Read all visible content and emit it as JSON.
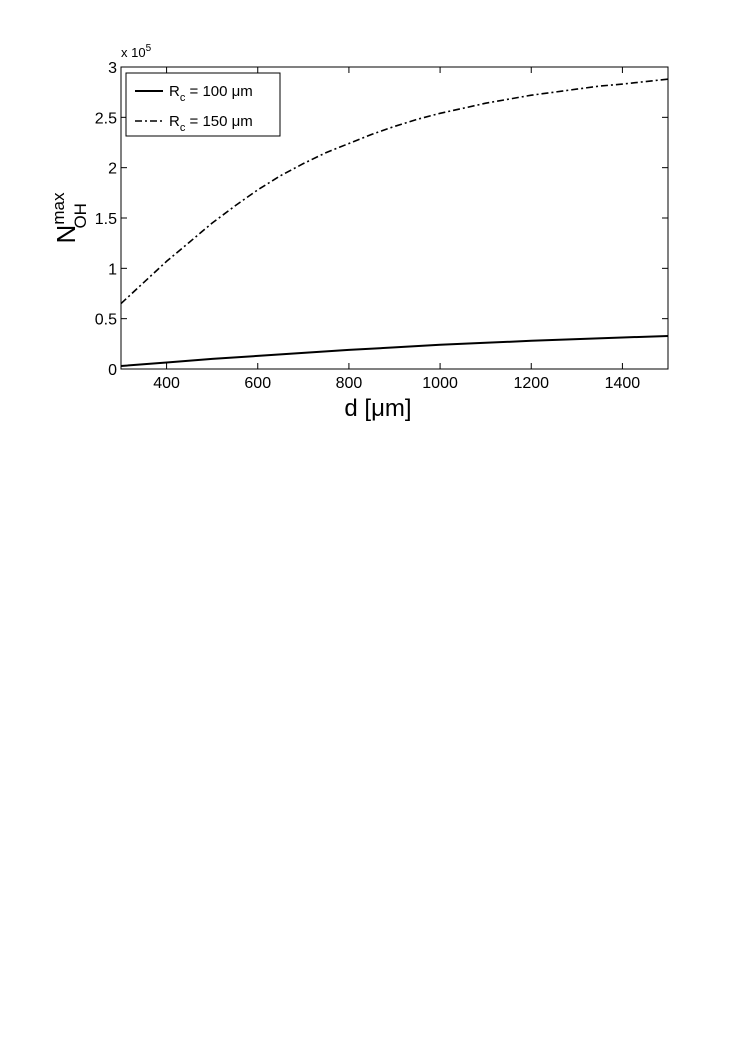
{
  "chart_data": {
    "type": "line",
    "xlabel": "d [μm]",
    "ylabel": {
      "base": "N",
      "superscript": "max",
      "subscript": "OH"
    },
    "y_multiplier": "x 10",
    "y_multiplier_exponent": "5",
    "xlim": [
      300,
      1500
    ],
    "ylim": [
      0,
      3
    ],
    "x_ticks": [
      400,
      600,
      800,
      1000,
      1200,
      1400
    ],
    "y_ticks": [
      0,
      0.5,
      1,
      1.5,
      2,
      2.5,
      3
    ],
    "grid": false,
    "legend_position": "top-left",
    "series": [
      {
        "name": "R_c = 100 μm",
        "legend_base": "R",
        "legend_sub": "c",
        "legend_rest": " = 100 μm",
        "style": "solid",
        "x": [
          300,
          400,
          500,
          600,
          700,
          800,
          900,
          1000,
          1100,
          1200,
          1300,
          1400,
          1500
        ],
        "y": [
          0.03,
          0.065,
          0.1,
          0.13,
          0.16,
          0.19,
          0.215,
          0.24,
          0.26,
          0.28,
          0.297,
          0.313,
          0.328
        ]
      },
      {
        "name": "R_c = 150 μm",
        "legend_base": "R",
        "legend_sub": "c",
        "legend_rest": " = 150 μm",
        "style": "dashdot",
        "x": [
          300,
          350,
          400,
          450,
          500,
          550,
          600,
          650,
          700,
          750,
          800,
          850,
          900,
          950,
          1000,
          1050,
          1100,
          1150,
          1200,
          1250,
          1300,
          1350,
          1400,
          1450,
          1500
        ],
        "y": [
          0.65,
          0.86,
          1.07,
          1.26,
          1.45,
          1.62,
          1.78,
          1.92,
          2.04,
          2.15,
          2.24,
          2.33,
          2.41,
          2.48,
          2.54,
          2.59,
          2.64,
          2.68,
          2.72,
          2.75,
          2.78,
          2.81,
          2.83,
          2.855,
          2.88
        ]
      }
    ]
  }
}
